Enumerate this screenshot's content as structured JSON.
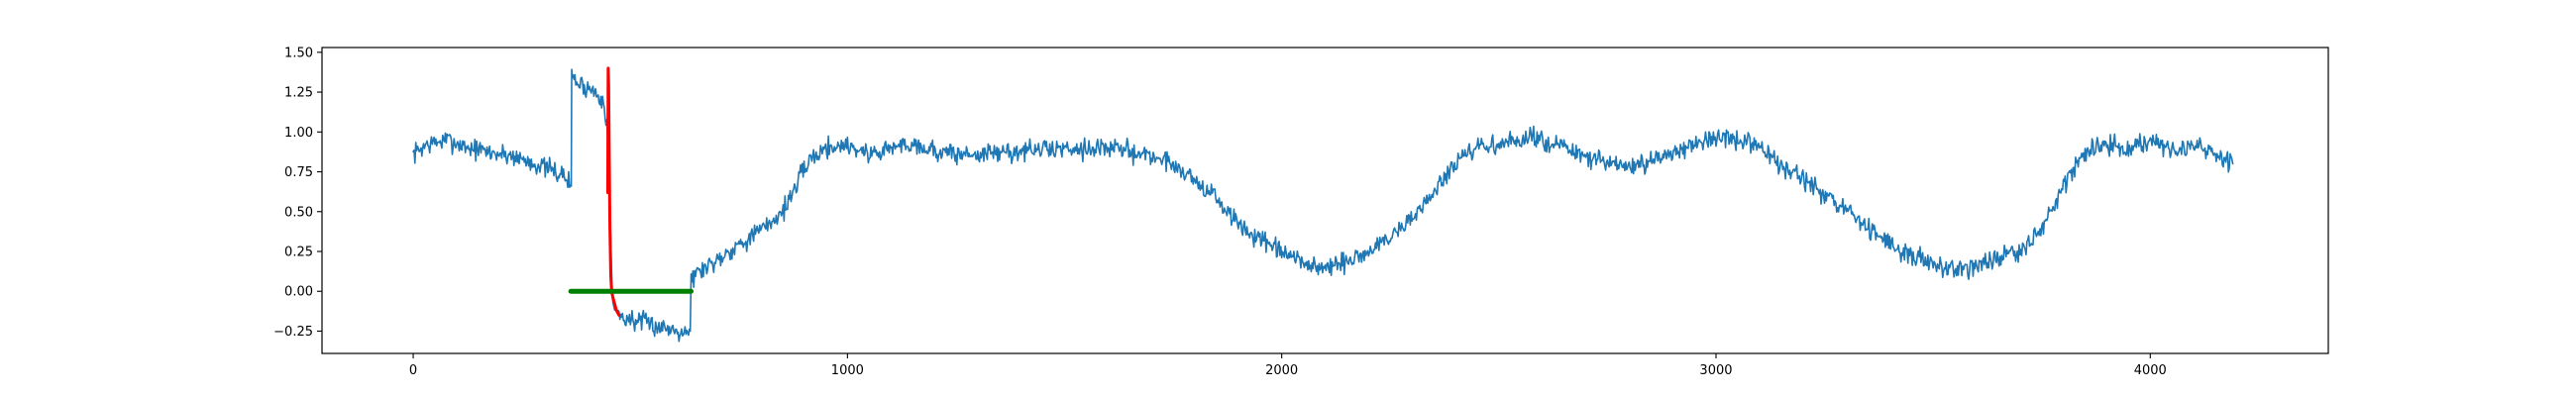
{
  "chart_data": {
    "type": "line",
    "title": "",
    "xlabel": "",
    "ylabel": "",
    "xlim": [
      -210,
      4410
    ],
    "ylim": [
      -0.39,
      1.53
    ],
    "x_ticks": [
      0,
      1000,
      2000,
      3000,
      4000
    ],
    "x_tick_labels": [
      "0",
      "1000",
      "2000",
      "3000",
      "4000"
    ],
    "y_ticks": [
      -0.25,
      0.0,
      0.25,
      0.5,
      0.75,
      1.0,
      1.25,
      1.5
    ],
    "y_tick_labels": [
      "−0.25",
      "0.00",
      "0.25",
      "0.50",
      "0.75",
      "1.00",
      "1.25",
      "1.50"
    ],
    "grid": false,
    "legend": "none",
    "series": [
      {
        "color": "#1f77b4",
        "noise": 0.045,
        "noise_seed": 7,
        "x": [
          0,
          30,
          80,
          130,
          180,
          230,
          280,
          320,
          350,
          364,
          365,
          380,
          400,
          420,
          440,
          448,
          452,
          456,
          459,
          462,
          470,
          490,
          520,
          550,
          580,
          610,
          638,
          640,
          660,
          690,
          730,
          770,
          810,
          850,
          880,
          910,
          950,
          1000,
          1050,
          1100,
          1150,
          1200,
          1250,
          1300,
          1350,
          1400,
          1450,
          1500,
          1550,
          1600,
          1650,
          1700,
          1750,
          1800,
          1850,
          1900,
          1950,
          2000,
          2050,
          2100,
          2150,
          2200,
          2250,
          2300,
          2350,
          2400,
          2450,
          2500,
          2550,
          2600,
          2650,
          2700,
          2750,
          2800,
          2850,
          2900,
          2950,
          3000,
          3050,
          3100,
          3150,
          3200,
          3250,
          3300,
          3350,
          3400,
          3450,
          3500,
          3550,
          3600,
          3650,
          3700,
          3750,
          3800,
          3850,
          3900,
          3950,
          4000,
          4050,
          4100,
          4150,
          4190
        ],
        "y": [
          0.86,
          0.92,
          0.95,
          0.9,
          0.87,
          0.85,
          0.8,
          0.76,
          0.72,
          0.66,
          1.36,
          1.3,
          1.28,
          1.25,
          1.2,
          0.95,
          0.68,
          0.2,
          -0.05,
          -0.1,
          -0.14,
          -0.17,
          -0.19,
          -0.21,
          -0.23,
          -0.24,
          -0.25,
          0.08,
          0.13,
          0.18,
          0.26,
          0.33,
          0.4,
          0.5,
          0.65,
          0.82,
          0.9,
          0.92,
          0.86,
          0.9,
          0.93,
          0.88,
          0.86,
          0.86,
          0.87,
          0.88,
          0.89,
          0.9,
          0.9,
          0.9,
          0.88,
          0.85,
          0.8,
          0.7,
          0.58,
          0.42,
          0.32,
          0.24,
          0.18,
          0.14,
          0.18,
          0.25,
          0.34,
          0.46,
          0.62,
          0.8,
          0.9,
          0.92,
          0.95,
          0.96,
          0.9,
          0.84,
          0.8,
          0.78,
          0.8,
          0.88,
          0.93,
          0.95,
          0.95,
          0.9,
          0.8,
          0.7,
          0.6,
          0.5,
          0.4,
          0.3,
          0.22,
          0.17,
          0.15,
          0.16,
          0.2,
          0.25,
          0.4,
          0.65,
          0.88,
          0.92,
          0.88,
          0.95,
          0.88,
          0.92,
          0.86,
          0.8
        ]
      },
      {
        "color": "#ff0000",
        "x": [
          448,
          449,
          450,
          451,
          452,
          453,
          455,
          457,
          460,
          464,
          468,
          474
        ],
        "y": [
          0.62,
          1.4,
          1.3,
          1.0,
          0.7,
          0.4,
          0.1,
          0.0,
          -0.04,
          -0.08,
          -0.12,
          -0.15
        ]
      },
      {
        "color": "#008000",
        "x": [
          363,
          640
        ],
        "y": [
          0.0,
          0.0
        ]
      }
    ]
  }
}
